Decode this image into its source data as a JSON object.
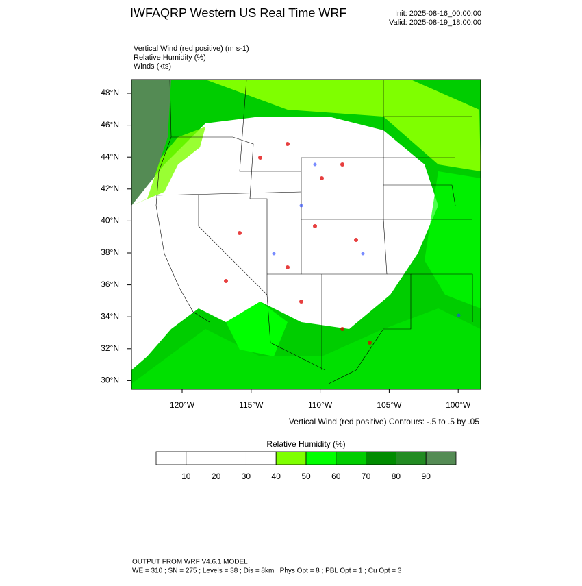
{
  "header": {
    "title": "IWFAQRP Western US Real Time WRF",
    "init": "Init: 2025-08-16_00:00:00",
    "valid": "Valid: 2025-08-19_18:00:00"
  },
  "fields": [
    "Vertical Wind (red positive)   (m s-1)",
    "Relative Humidity   (%)",
    "Winds   (kts)"
  ],
  "map": {
    "lat_labels": [
      "48°N",
      "46°N",
      "44°N",
      "42°N",
      "40°N",
      "38°N",
      "36°N",
      "34°N",
      "32°N",
      "30°N"
    ],
    "lon_labels": [
      "120°W",
      "115°W",
      "110°W",
      "105°W",
      "100°W"
    ],
    "contour_note": "Vertical Wind (red positive) Contours: -.5 to .5 by .05"
  },
  "colorbar": {
    "title": "Relative Humidity   (%)",
    "labels": [
      "10",
      "20",
      "30",
      "40",
      "50",
      "60",
      "70",
      "80",
      "90"
    ],
    "colors": [
      "#ffffff",
      "#ffffff",
      "#ffffff",
      "#ffffff",
      "#7fff00",
      "#00ff00",
      "#00cd00",
      "#008b00",
      "#228b22",
      "#548b54"
    ]
  },
  "footer": [
    "OUTPUT FROM WRF V4.6.1 MODEL",
    "WE = 310 ; SN = 275 ; Levels = 38 ; Dis = 8km ; Phys Opt = 8 ; PBL Opt = 1 ; Cu Opt = 3"
  ]
}
